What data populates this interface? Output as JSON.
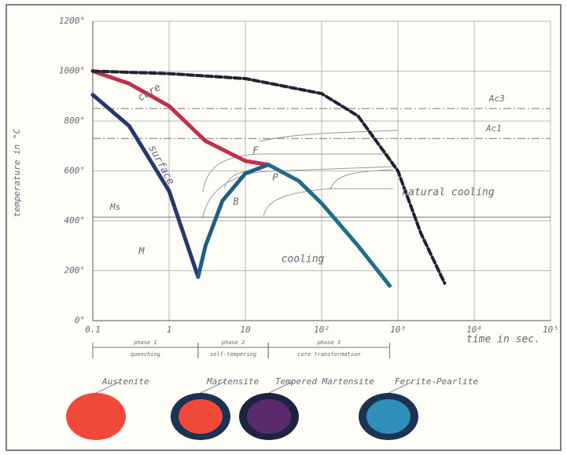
{
  "chart_data": {
    "type": "line",
    "x_label": "time in sec.",
    "y_label": "temperature in °C",
    "log_x": true,
    "grid": true,
    "xlim": [
      0.1,
      100000
    ],
    "ylim": [
      0,
      1200
    ],
    "xticks": [
      0.1,
      1,
      10,
      {
        "value": 100,
        "label": "10²"
      },
      {
        "value": 1000,
        "label": "10³"
      },
      {
        "value": 10000,
        "label": "10⁴"
      },
      {
        "value": 100000,
        "label": "10⁵"
      }
    ],
    "yticks": [
      {
        "value": 0,
        "label": "0°"
      },
      {
        "value": 200,
        "label": "200°"
      },
      {
        "value": 400,
        "label": "400°"
      },
      {
        "value": 600,
        "label": "600°"
      },
      {
        "value": 800,
        "label": "800°"
      },
      {
        "value": 1000,
        "label": "1000°"
      },
      {
        "value": 1200,
        "label": "1200°"
      }
    ],
    "series": [
      {
        "name": "core",
        "color": "#c0304a",
        "x": [
          0.1,
          0.3,
          1,
          3,
          10,
          20
        ],
        "values": [
          1000,
          950,
          860,
          720,
          640,
          625
        ]
      },
      {
        "name": "surface",
        "color": "#243a6e",
        "x": [
          0.1,
          0.3,
          1,
          2.4
        ],
        "values": [
          905,
          780,
          520,
          175
        ]
      },
      {
        "color": "#1f5f85",
        "x": [
          2.4,
          3,
          5,
          10,
          20
        ],
        "values": [
          175,
          300,
          480,
          590,
          625
        ]
      },
      {
        "name": "cooling",
        "color": "#1f6f8a",
        "x": [
          20,
          50,
          100,
          300,
          780
        ],
        "values": [
          625,
          560,
          470,
          300,
          140
        ]
      },
      {
        "name": "natural cooling",
        "color": "#222233",
        "dashed": true,
        "x": [
          0.1,
          1,
          10,
          100,
          300,
          1000,
          2000,
          4100
        ],
        "values": [
          1000,
          990,
          970,
          910,
          820,
          600,
          350,
          150
        ]
      }
    ],
    "reference_lines": [
      {
        "label": "Ac3",
        "value": 850
      },
      {
        "label": "Ac1",
        "value": 730
      },
      {
        "label": "Ms",
        "value": 415
      }
    ],
    "annotations": [
      "F",
      "P",
      "B",
      "M"
    ],
    "phases": [
      {
        "name": "phase 1",
        "description": "quenching",
        "start": 0.1,
        "end": 2.4
      },
      {
        "name": "phase 2",
        "description": "self-tempering",
        "start": 2.4,
        "end": 20
      },
      {
        "name": "phase 3",
        "description": "core transformation",
        "start": 20,
        "end": 780
      }
    ],
    "structures": [
      {
        "label": "Austenite",
        "color": "#f2483a"
      },
      {
        "label": "Martensite",
        "color": "#f2483a",
        "ring": "#1d3354"
      },
      {
        "label": "Tempered Martensite",
        "color": "#5a2a6e",
        "ring": "#1d2340"
      },
      {
        "label": "Ferrite-Pearlite",
        "color": "#2f8fb8",
        "ring": "#1d3354"
      }
    ]
  }
}
